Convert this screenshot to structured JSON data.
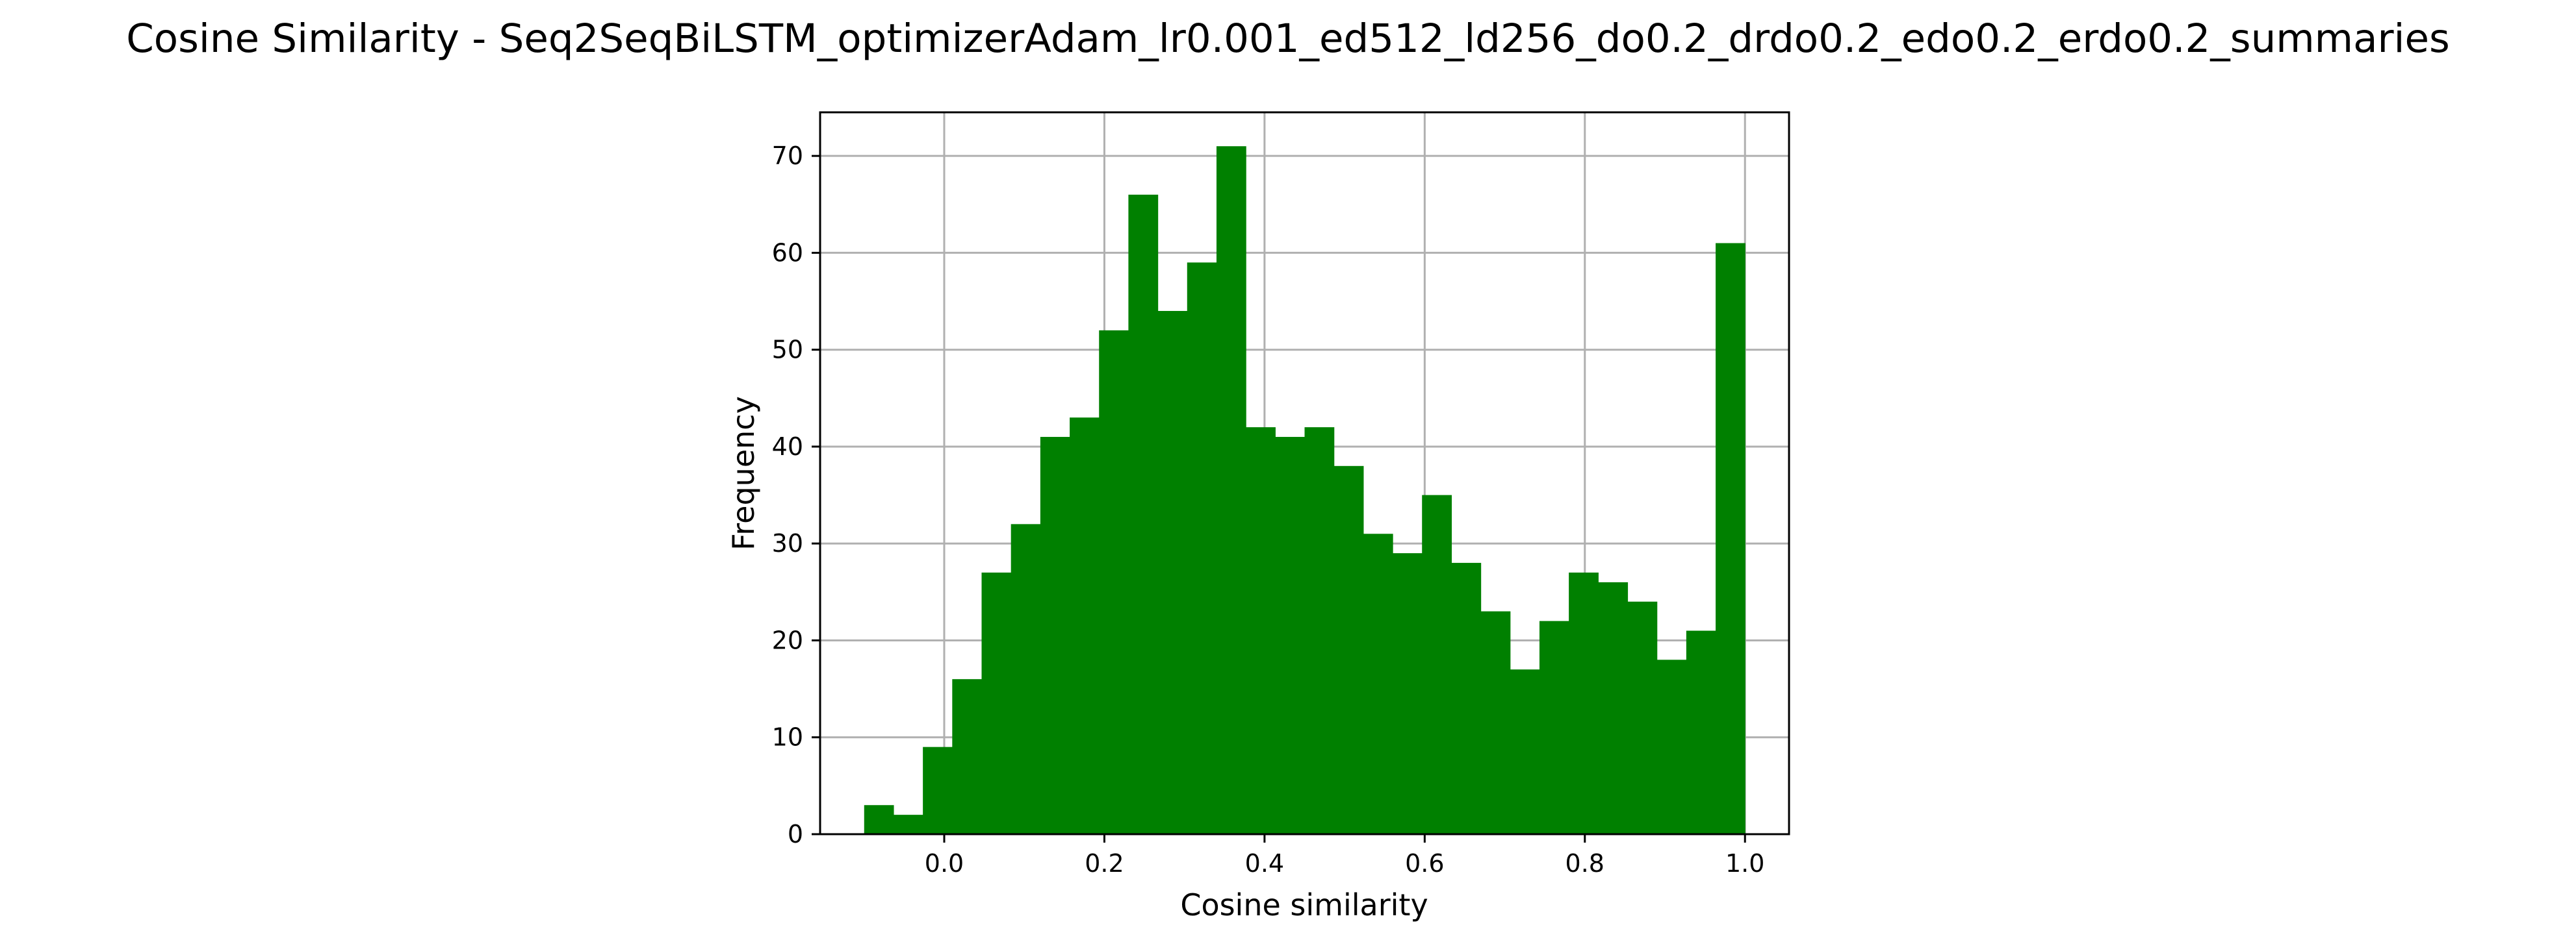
{
  "chart_data": {
    "type": "histogram",
    "title": "Cosine Similarity - Seq2SeqBiLSTM_optimizerAdam_lr0.001_ed512_ld256_do0.2_drdo0.2_edo0.2_erdo0.2_summaries",
    "xlabel": "Cosine similarity",
    "ylabel": "Frequency",
    "xlim": [
      -0.155,
      1.055
    ],
    "ylim": [
      0,
      74.5
    ],
    "xticks": [
      0.0,
      0.2,
      0.4,
      0.6,
      0.8,
      1.0
    ],
    "xtick_labels": [
      "0.0",
      "0.2",
      "0.4",
      "0.6",
      "0.8",
      "1.0"
    ],
    "yticks": [
      0,
      10,
      20,
      30,
      40,
      50,
      60,
      70
    ],
    "ytick_labels": [
      "0",
      "10",
      "20",
      "30",
      "40",
      "50",
      "60",
      "70"
    ],
    "grid": true,
    "bar_color": "#008000",
    "bin_start": -0.1,
    "bin_end": 1.0,
    "bin_count": 30,
    "counts": [
      3,
      2,
      9,
      16,
      27,
      32,
      41,
      43,
      52,
      66,
      54,
      59,
      71,
      42,
      41,
      42,
      38,
      31,
      29,
      35,
      28,
      23,
      17,
      22,
      27,
      26,
      24,
      18,
      21,
      61
    ]
  }
}
